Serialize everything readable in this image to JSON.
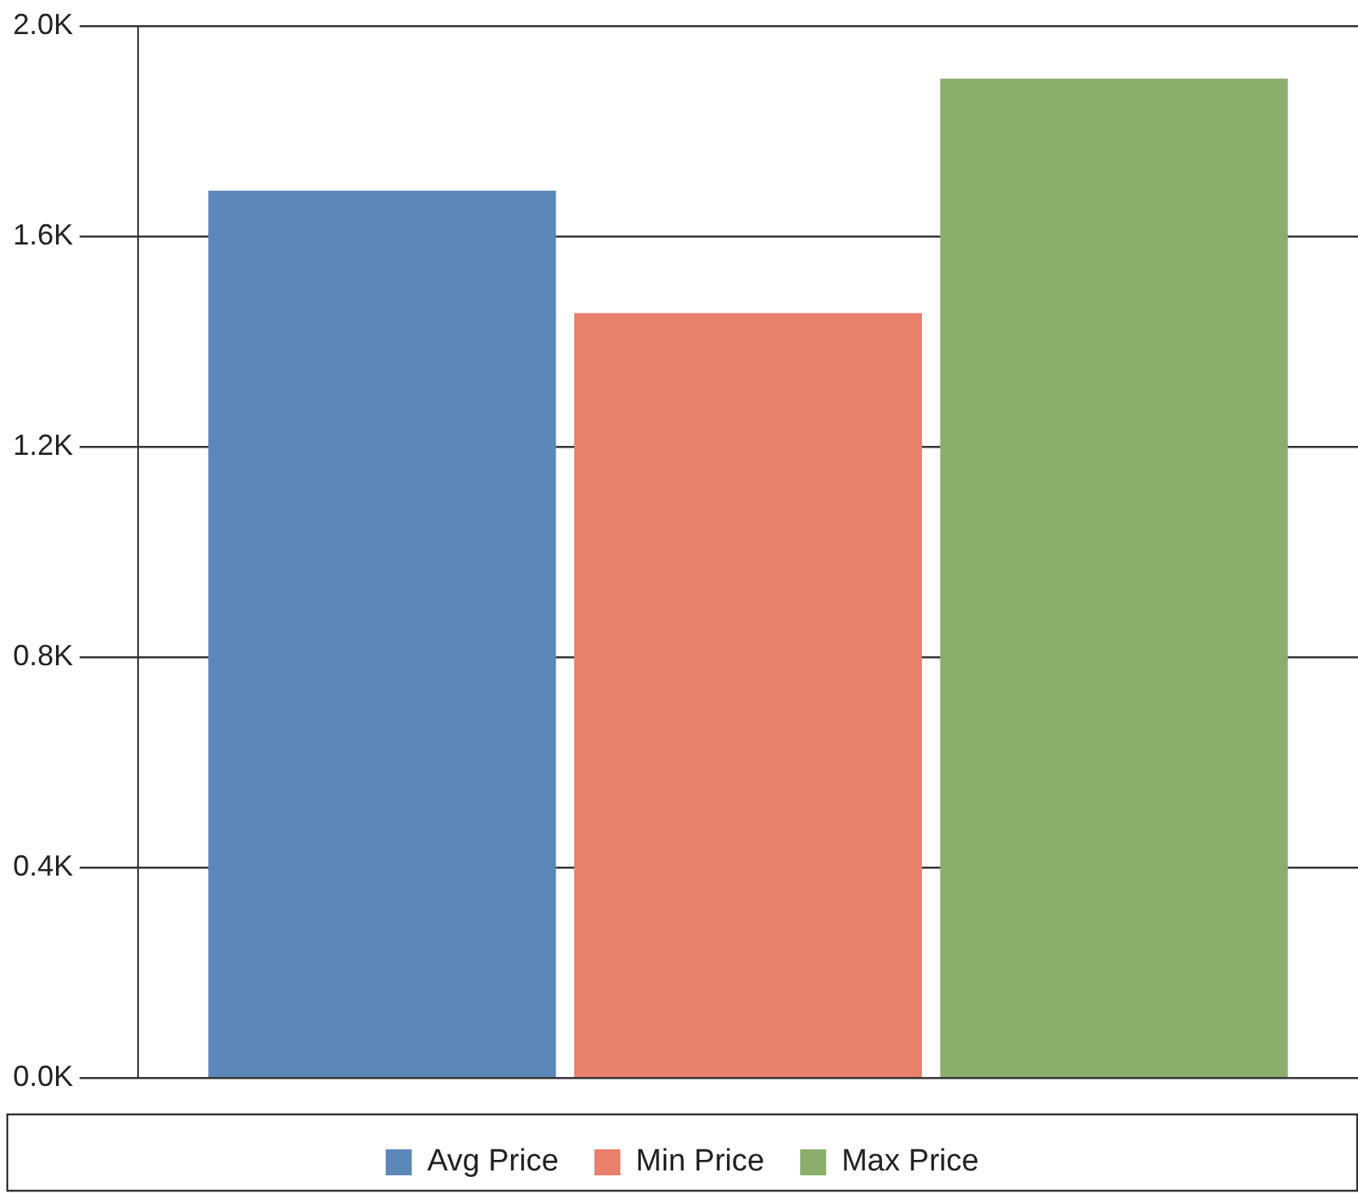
{
  "chart_data": {
    "type": "bar",
    "categories": [
      null
    ],
    "series": [
      {
        "name": "Avg Price",
        "color": "#5b87b9",
        "values": [
          1687
        ]
      },
      {
        "name": "Min Price",
        "color": "#e8806c",
        "values": [
          1454
        ]
      },
      {
        "name": "Max Price",
        "color": "#8cae6b",
        "values": [
          1900
        ]
      }
    ],
    "ylim": [
      0,
      2000
    ],
    "yticks": [
      {
        "value": 0,
        "label": "0.0K"
      },
      {
        "value": 400,
        "label": "0.4K"
      },
      {
        "value": 800,
        "label": "0.8K"
      },
      {
        "value": 1200,
        "label": "1.2K"
      },
      {
        "value": 1600,
        "label": "1.6K"
      },
      {
        "value": 2000,
        "label": "2.0K"
      }
    ],
    "grid": "y",
    "legend": "bottom"
  }
}
